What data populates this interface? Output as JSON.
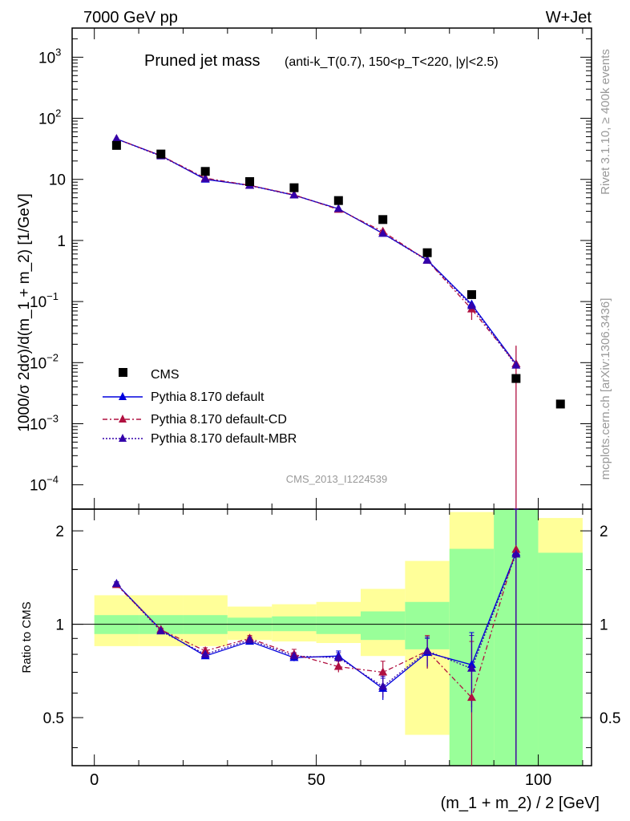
{
  "header": {
    "left": "7000 GeV pp",
    "right": "W+Jet"
  },
  "title_main": "Pruned jet mass",
  "title_sub": "(anti-k_T(0.7), 150<p_T<220, |y|<2.5)",
  "side_label_top": "Rivet 3.1.10, ≥ 400k events",
  "side_label_bottom": "mcplots.cern.ch [arXiv:1306.3436]",
  "watermark": "CMS_2013_I1224539",
  "ylabel_main": "1000/σ 2dσ)/d(m_1 + m_2) [1/GeV]",
  "ylabel_ratio": "Ratio to CMS",
  "xlabel": "(m_1 + m_2) / 2 [GeV]",
  "legend": [
    {
      "label": "CMS",
      "color": "#000000",
      "style": "marker-square"
    },
    {
      "label": "Pythia 8.170 default",
      "color": "#0000dd",
      "style": "solid"
    },
    {
      "label": "Pythia 8.170 default-CD",
      "color": "#b01040",
      "style": "dashdot"
    },
    {
      "label": "Pythia 8.170 default-MBR",
      "color": "#3300aa",
      "style": "dotted"
    }
  ],
  "chart_data": {
    "type": "scatter",
    "xlim": [
      -5,
      112
    ],
    "ylim": [
      4e-05,
      3000
    ],
    "yscale": "log",
    "x_ticks": [
      "0",
      "50",
      "100"
    ],
    "y_ticks": [
      "10^-4",
      "10^-3",
      "10^-2",
      "10^-1",
      "1",
      "10",
      "10^2",
      "10^3"
    ],
    "cms": {
      "x": [
        5,
        15,
        25,
        35,
        45,
        55,
        65,
        75,
        85,
        95,
        105
      ],
      "y": [
        36,
        26,
        13.5,
        9.2,
        7.3,
        4.5,
        2.2,
        0.63,
        0.13,
        0.0055,
        0.0021
      ]
    },
    "series": [
      {
        "name": "Pythia 8.170 default",
        "color": "#0000dd",
        "x": [
          5,
          15,
          25,
          35,
          45,
          55,
          65,
          75,
          85,
          95
        ],
        "y": [
          46,
          24.5,
          10,
          8,
          5.5,
          3.3,
          1.3,
          0.48,
          0.09,
          0.0095
        ],
        "ratio": [
          1.35,
          0.96,
          0.79,
          0.88,
          0.78,
          0.79,
          0.62,
          0.81,
          0.74,
          1.7
        ],
        "ratio_err": [
          0.02,
          0.01,
          0.015,
          0.02,
          0.02,
          0.03,
          0.05,
          0.09,
          0.2,
          2.0
        ]
      },
      {
        "name": "Pythia 8.170 default-CD",
        "color": "#b01040",
        "x": [
          5,
          15,
          25,
          35,
          45,
          55,
          65,
          75,
          85,
          95
        ],
        "y": [
          46,
          24.5,
          10.5,
          8,
          5.6,
          3.2,
          1.4,
          0.47,
          0.075,
          0.0095
        ],
        "ratio": [
          1.34,
          0.96,
          0.82,
          0.9,
          0.8,
          0.73,
          0.7,
          0.82,
          0.58,
          1.74
        ],
        "ratio_err": [
          0.02,
          0.01,
          0.02,
          0.02,
          0.03,
          0.03,
          0.06,
          0.1,
          0.3,
          2.0
        ]
      },
      {
        "name": "Pythia 8.170 default-MBR",
        "color": "#3300aa",
        "x": [
          5,
          15,
          25,
          35,
          45,
          55,
          65,
          75,
          85,
          95
        ],
        "y": [
          46,
          24,
          10.2,
          7.9,
          5.5,
          3.3,
          1.3,
          0.47,
          0.085,
          0.009
        ],
        "ratio": [
          1.35,
          0.95,
          0.8,
          0.89,
          0.79,
          0.78,
          0.63,
          0.82,
          0.72,
          1.68
        ],
        "ratio_err": [
          0.02,
          0.01,
          0.015,
          0.02,
          0.02,
          0.03,
          0.05,
          0.09,
          0.2,
          2.0
        ]
      }
    ],
    "ratio_panel": {
      "ylim": [
        0.35,
        2.35
      ],
      "yscale": "log",
      "y_ticks": [
        "0.5",
        "1",
        "2"
      ],
      "bins": [
        0,
        10,
        20,
        30,
        40,
        50,
        60,
        70,
        80,
        90,
        100,
        110
      ],
      "band_inner": [
        [
          0.93,
          1.07
        ],
        [
          0.93,
          1.07
        ],
        [
          0.93,
          1.07
        ],
        [
          0.95,
          1.05
        ],
        [
          0.95,
          1.06
        ],
        [
          0.93,
          1.06
        ],
        [
          0.89,
          1.1
        ],
        [
          0.83,
          1.18
        ],
        [
          0.3,
          1.75
        ],
        [
          0.3,
          2.5
        ],
        [
          0.3,
          1.7
        ]
      ],
      "band_outer": [
        [
          0.85,
          1.24
        ],
        [
          0.85,
          1.24
        ],
        [
          0.85,
          1.24
        ],
        [
          0.89,
          1.14
        ],
        [
          0.88,
          1.16
        ],
        [
          0.87,
          1.18
        ],
        [
          0.79,
          1.3
        ],
        [
          0.44,
          1.6
        ],
        [
          0.3,
          2.3
        ],
        [
          0.3,
          2.5
        ],
        [
          0.3,
          2.2
        ]
      ]
    }
  }
}
